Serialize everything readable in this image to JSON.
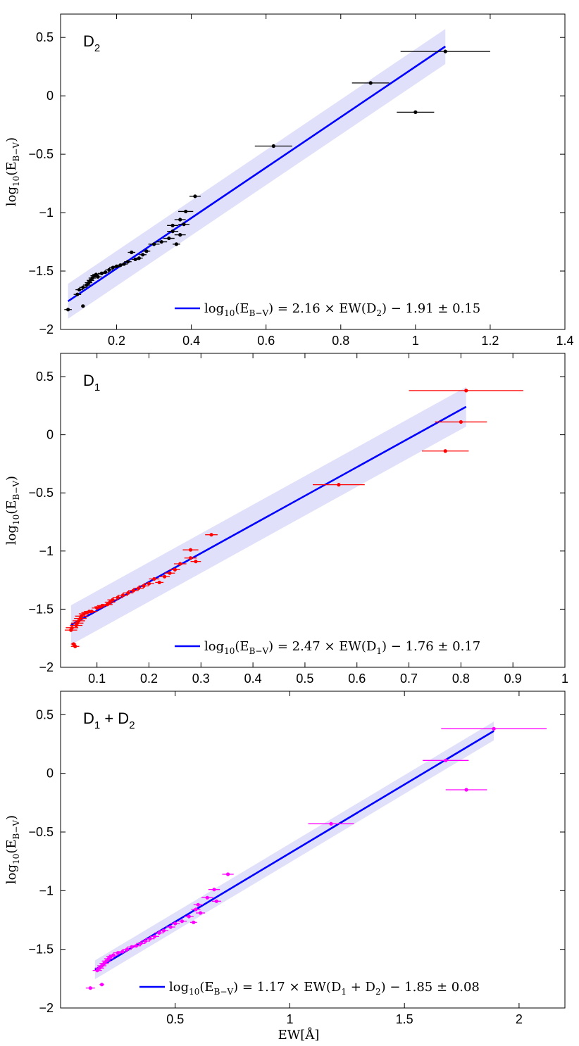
{
  "chart_data": [
    {
      "type": "scatter",
      "panel_label": "D",
      "panel_label_sub": "2",
      "ylabel": "log10(EB−V)",
      "ylabel_main": "log",
      "ylabel_sub1": "10",
      "ylabel_paren": "(E",
      "ylabel_sub2": "B−V",
      "ylabel_close": ")",
      "xlabel": "",
      "xlim": [
        0.05,
        1.4
      ],
      "ylim": [
        -2,
        0.7
      ],
      "xticks": [
        "0.2",
        "0.4",
        "0.6",
        "0.8",
        "1",
        "1.2",
        "1.4"
      ],
      "xtick_values": [
        0.2,
        0.4,
        0.6,
        0.8,
        1.0,
        1.2,
        1.4
      ],
      "yticks": [
        "0.5",
        "0",
        "−0.5",
        "−1",
        "−1.5",
        "−2"
      ],
      "ytick_values": [
        0.5,
        0,
        -0.5,
        -1,
        -1.5,
        -2
      ],
      "point_color": "#000000",
      "line_color": "#0000ff",
      "band_color": "#e0e0fa",
      "fit": {
        "slope": 2.16,
        "intercept": -1.91,
        "sigma": 0.15,
        "x_range": [
          0.07,
          1.08
        ]
      },
      "legend": "log10(EB−V) = 2.16 × EW(D2) − 1.91 ± 0.15",
      "legend_parts": {
        "pre": "log",
        "sub1": "10",
        "mid": "(E",
        "sub2": "B−V",
        "eq": ") = 2.16 × EW(D",
        "sub3": "2",
        "post": ") − 1.91 ± 0.15"
      },
      "points": [
        {
          "x": 0.07,
          "y": -1.83,
          "xerr": 0.01
        },
        {
          "x": 0.095,
          "y": -1.7,
          "xerr": 0.01
        },
        {
          "x": 0.1,
          "y": -1.66,
          "xerr": 0.01
        },
        {
          "x": 0.11,
          "y": -1.8,
          "xerr": 0.005
        },
        {
          "x": 0.11,
          "y": -1.64,
          "xerr": 0.01
        },
        {
          "x": 0.12,
          "y": -1.62,
          "xerr": 0.01
        },
        {
          "x": 0.125,
          "y": -1.6,
          "xerr": 0.01
        },
        {
          "x": 0.13,
          "y": -1.58,
          "xerr": 0.01
        },
        {
          "x": 0.135,
          "y": -1.56,
          "xerr": 0.01
        },
        {
          "x": 0.14,
          "y": -1.54,
          "xerr": 0.01
        },
        {
          "x": 0.145,
          "y": -1.53,
          "xerr": 0.01
        },
        {
          "x": 0.15,
          "y": -1.55,
          "xerr": 0.01
        },
        {
          "x": 0.16,
          "y": -1.52,
          "xerr": 0.01
        },
        {
          "x": 0.17,
          "y": -1.51,
          "xerr": 0.01
        },
        {
          "x": 0.18,
          "y": -1.49,
          "xerr": 0.01
        },
        {
          "x": 0.19,
          "y": -1.47,
          "xerr": 0.01
        },
        {
          "x": 0.2,
          "y": -1.46,
          "xerr": 0.01
        },
        {
          "x": 0.21,
          "y": -1.45,
          "xerr": 0.01
        },
        {
          "x": 0.22,
          "y": -1.44,
          "xerr": 0.01
        },
        {
          "x": 0.23,
          "y": -1.42,
          "xerr": 0.01
        },
        {
          "x": 0.24,
          "y": -1.34,
          "xerr": 0.01
        },
        {
          "x": 0.25,
          "y": -1.4,
          "xerr": 0.01
        },
        {
          "x": 0.26,
          "y": -1.39,
          "xerr": 0.01
        },
        {
          "x": 0.27,
          "y": -1.36,
          "xerr": 0.01
        },
        {
          "x": 0.28,
          "y": -1.33,
          "xerr": 0.01
        },
        {
          "x": 0.3,
          "y": -1.27,
          "xerr": 0.015
        },
        {
          "x": 0.32,
          "y": -1.25,
          "xerr": 0.015
        },
        {
          "x": 0.34,
          "y": -1.22,
          "xerr": 0.015
        },
        {
          "x": 0.35,
          "y": -1.16,
          "xerr": 0.015
        },
        {
          "x": 0.35,
          "y": -1.11,
          "xerr": 0.015
        },
        {
          "x": 0.36,
          "y": -1.27,
          "xerr": 0.01
        },
        {
          "x": 0.37,
          "y": -1.06,
          "xerr": 0.015
        },
        {
          "x": 0.37,
          "y": -1.19,
          "xerr": 0.015
        },
        {
          "x": 0.38,
          "y": -1.1,
          "xerr": 0.015
        },
        {
          "x": 0.385,
          "y": -0.99,
          "xerr": 0.02
        },
        {
          "x": 0.41,
          "y": -0.86,
          "xerr": 0.015
        },
        {
          "x": 0.62,
          "y": -0.43,
          "xerr": 0.05
        },
        {
          "x": 0.88,
          "y": 0.11,
          "xerr": 0.05
        },
        {
          "x": 1.0,
          "y": -0.14,
          "xerr": 0.05
        },
        {
          "x": 1.08,
          "y": 0.38,
          "xerr": 0.12
        }
      ]
    },
    {
      "type": "scatter",
      "panel_label": "D",
      "panel_label_sub": "1",
      "ylabel": "log10(EB−V)",
      "ylabel_main": "log",
      "ylabel_sub1": "10",
      "ylabel_paren": "(E",
      "ylabel_sub2": "B−V",
      "ylabel_close": ")",
      "xlabel": "",
      "xlim": [
        0.03,
        1.0
      ],
      "ylim": [
        -2,
        0.7
      ],
      "xticks": [
        "0.1",
        "0.2",
        "0.3",
        "0.4",
        "0.5",
        "0.6",
        "0.7",
        "0.8",
        "0.9",
        "1"
      ],
      "xtick_values": [
        0.1,
        0.2,
        0.3,
        0.4,
        0.5,
        0.6,
        0.7,
        0.8,
        0.9,
        1.0
      ],
      "yticks": [
        "0.5",
        "0",
        "−0.5",
        "−1",
        "−1.5",
        "−2"
      ],
      "ytick_values": [
        0.5,
        0,
        -0.5,
        -1,
        -1.5,
        -2
      ],
      "point_color": "#ff0000",
      "line_color": "#0000ff",
      "band_color": "#e0e0fa",
      "fit": {
        "slope": 2.47,
        "intercept": -1.76,
        "sigma": 0.17,
        "x_range": [
          0.05,
          0.81
        ]
      },
      "legend": "log10(EB−V) = 2.47 × EW(D1) − 1.76 ± 0.17",
      "legend_parts": {
        "pre": "log",
        "sub1": "10",
        "mid": "(E",
        "sub2": "B−V",
        "eq": ") = 2.47 × EW(D",
        "sub3": "1",
        "post": ") − 1.76 ± 0.17"
      },
      "points": [
        {
          "x": 0.05,
          "y": -1.68,
          "xerr": 0.012
        },
        {
          "x": 0.052,
          "y": -1.66,
          "xerr": 0.012
        },
        {
          "x": 0.055,
          "y": -1.8,
          "xerr": 0.005
        },
        {
          "x": 0.058,
          "y": -1.82,
          "xerr": 0.008
        },
        {
          "x": 0.06,
          "y": -1.64,
          "xerr": 0.012
        },
        {
          "x": 0.062,
          "y": -1.62,
          "xerr": 0.012
        },
        {
          "x": 0.065,
          "y": -1.6,
          "xerr": 0.012
        },
        {
          "x": 0.068,
          "y": -1.58,
          "xerr": 0.012
        },
        {
          "x": 0.07,
          "y": -1.56,
          "xerr": 0.012
        },
        {
          "x": 0.075,
          "y": -1.54,
          "xerr": 0.01
        },
        {
          "x": 0.08,
          "y": -1.53,
          "xerr": 0.01
        },
        {
          "x": 0.085,
          "y": -1.52,
          "xerr": 0.01
        },
        {
          "x": 0.09,
          "y": -1.52,
          "xerr": 0.01
        },
        {
          "x": 0.1,
          "y": -1.49,
          "xerr": 0.01
        },
        {
          "x": 0.105,
          "y": -1.48,
          "xerr": 0.01
        },
        {
          "x": 0.11,
          "y": -1.47,
          "xerr": 0.01
        },
        {
          "x": 0.12,
          "y": -1.46,
          "xerr": 0.01
        },
        {
          "x": 0.125,
          "y": -1.44,
          "xerr": 0.01
        },
        {
          "x": 0.13,
          "y": -1.42,
          "xerr": 0.01
        },
        {
          "x": 0.14,
          "y": -1.4,
          "xerr": 0.01
        },
        {
          "x": 0.15,
          "y": -1.38,
          "xerr": 0.01
        },
        {
          "x": 0.16,
          "y": -1.36,
          "xerr": 0.01
        },
        {
          "x": 0.17,
          "y": -1.34,
          "xerr": 0.01
        },
        {
          "x": 0.18,
          "y": -1.32,
          "xerr": 0.01
        },
        {
          "x": 0.19,
          "y": -1.3,
          "xerr": 0.01
        },
        {
          "x": 0.2,
          "y": -1.28,
          "xerr": 0.01
        },
        {
          "x": 0.21,
          "y": -1.24,
          "xerr": 0.01
        },
        {
          "x": 0.22,
          "y": -1.27,
          "xerr": 0.008
        },
        {
          "x": 0.23,
          "y": -1.22,
          "xerr": 0.01
        },
        {
          "x": 0.24,
          "y": -1.19,
          "xerr": 0.01
        },
        {
          "x": 0.25,
          "y": -1.16,
          "xerr": 0.01
        },
        {
          "x": 0.26,
          "y": -1.11,
          "xerr": 0.012
        },
        {
          "x": 0.28,
          "y": -1.06,
          "xerr": 0.012
        },
        {
          "x": 0.28,
          "y": -0.99,
          "xerr": 0.015
        },
        {
          "x": 0.29,
          "y": -1.09,
          "xerr": 0.01
        },
        {
          "x": 0.32,
          "y": -0.86,
          "xerr": 0.012
        },
        {
          "x": 0.565,
          "y": -0.43,
          "xerr": 0.05
        },
        {
          "x": 0.77,
          "y": -0.14,
          "xerr": 0.045
        },
        {
          "x": 0.8,
          "y": 0.11,
          "xerr": 0.05
        },
        {
          "x": 0.81,
          "y": 0.38,
          "xerr": 0.11
        }
      ]
    },
    {
      "type": "scatter",
      "panel_label": "D",
      "panel_label_sub": "1",
      "panel_label_plus": " + D",
      "panel_label_sub2": "2",
      "ylabel": "log10(EB−V)",
      "ylabel_main": "log",
      "ylabel_sub1": "10",
      "ylabel_paren": "(E",
      "ylabel_sub2": "B−V",
      "ylabel_close": ")",
      "xlabel": "EW[Å]",
      "xlim": [
        0.0,
        2.2
      ],
      "ylim": [
        -2,
        0.7
      ],
      "xticks": [
        "0.5",
        "1",
        "1.5",
        "2"
      ],
      "xtick_values": [
        0.5,
        1.0,
        1.5,
        2.0
      ],
      "yticks": [
        "0.5",
        "0",
        "−0.5",
        "−1",
        "−1.5",
        "−2"
      ],
      "ytick_values": [
        0.5,
        0,
        -0.5,
        -1,
        -1.5,
        -2
      ],
      "point_color": "#ff00ff",
      "line_color": "#0000ff",
      "band_color": "#e0e0fa",
      "fit": {
        "slope": 1.17,
        "intercept": -1.85,
        "sigma": 0.08,
        "x_range": [
          0.15,
          1.89
        ]
      },
      "legend": "log10(EB−V) = 1.17 × EW(D1 + D2) − 1.85 ± 0.08",
      "legend_parts": {
        "pre": "log",
        "sub1": "10",
        "mid": "(E",
        "sub2": "B−V",
        "eq": ") = 1.17 × EW(D",
        "sub3": "1",
        "mid2": " + D",
        "sub4": "2",
        "post": ") − 1.85 ± 0.08"
      },
      "points": [
        {
          "x": 0.13,
          "y": -1.83,
          "xerr": 0.02
        },
        {
          "x": 0.16,
          "y": -1.68,
          "xerr": 0.02
        },
        {
          "x": 0.17,
          "y": -1.66,
          "xerr": 0.02
        },
        {
          "x": 0.18,
          "y": -1.8,
          "xerr": 0.01
        },
        {
          "x": 0.18,
          "y": -1.64,
          "xerr": 0.02
        },
        {
          "x": 0.19,
          "y": -1.62,
          "xerr": 0.02
        },
        {
          "x": 0.2,
          "y": -1.6,
          "xerr": 0.02
        },
        {
          "x": 0.21,
          "y": -1.58,
          "xerr": 0.02
        },
        {
          "x": 0.22,
          "y": -1.56,
          "xerr": 0.02
        },
        {
          "x": 0.23,
          "y": -1.55,
          "xerr": 0.02
        },
        {
          "x": 0.25,
          "y": -1.53,
          "xerr": 0.02
        },
        {
          "x": 0.27,
          "y": -1.52,
          "xerr": 0.02
        },
        {
          "x": 0.29,
          "y": -1.5,
          "xerr": 0.02
        },
        {
          "x": 0.31,
          "y": -1.48,
          "xerr": 0.02
        },
        {
          "x": 0.33,
          "y": -1.47,
          "xerr": 0.02
        },
        {
          "x": 0.35,
          "y": -1.45,
          "xerr": 0.02
        },
        {
          "x": 0.37,
          "y": -1.43,
          "xerr": 0.02
        },
        {
          "x": 0.39,
          "y": -1.41,
          "xerr": 0.02
        },
        {
          "x": 0.41,
          "y": -1.39,
          "xerr": 0.02
        },
        {
          "x": 0.43,
          "y": -1.36,
          "xerr": 0.02
        },
        {
          "x": 0.45,
          "y": -1.34,
          "xerr": 0.02
        },
        {
          "x": 0.48,
          "y": -1.31,
          "xerr": 0.02
        },
        {
          "x": 0.5,
          "y": -1.28,
          "xerr": 0.02
        },
        {
          "x": 0.53,
          "y": -1.26,
          "xerr": 0.02
        },
        {
          "x": 0.56,
          "y": -1.22,
          "xerr": 0.02
        },
        {
          "x": 0.58,
          "y": -1.27,
          "xerr": 0.015
        },
        {
          "x": 0.59,
          "y": -1.16,
          "xerr": 0.02
        },
        {
          "x": 0.6,
          "y": -1.12,
          "xerr": 0.02
        },
        {
          "x": 0.61,
          "y": -1.19,
          "xerr": 0.02
        },
        {
          "x": 0.64,
          "y": -1.06,
          "xerr": 0.025
        },
        {
          "x": 0.67,
          "y": -0.99,
          "xerr": 0.025
        },
        {
          "x": 0.68,
          "y": -1.09,
          "xerr": 0.02
        },
        {
          "x": 0.73,
          "y": -0.86,
          "xerr": 0.025
        },
        {
          "x": 1.18,
          "y": -0.43,
          "xerr": 0.1
        },
        {
          "x": 1.68,
          "y": 0.11,
          "xerr": 0.1
        },
        {
          "x": 1.77,
          "y": -0.14,
          "xerr": 0.09
        },
        {
          "x": 1.89,
          "y": 0.38,
          "xerr": 0.23
        }
      ]
    }
  ]
}
